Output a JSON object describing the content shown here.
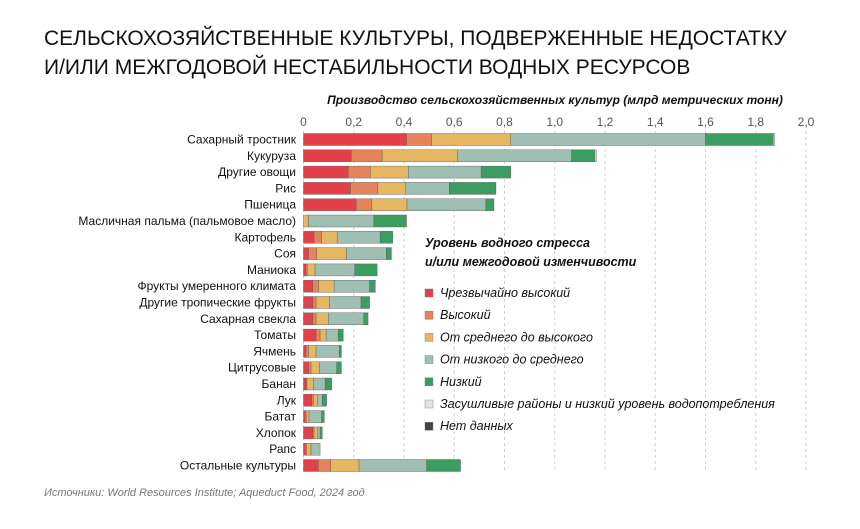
{
  "title_line1": "СЕЛЬСКОХОЗЯЙСТВЕННЫЕ КУЛЬТУРЫ, ПОДВЕРЖЕННЫЕ НЕДОСТАТКУ",
  "title_line2": "И/ИЛИ МЕЖГОДОВОЙ НЕСТАБИЛЬНОСТИ ВОДНЫХ РЕСУРСОВ",
  "source": "Источники: World Resources Institute; Aqueduct Food, 2024 год",
  "chart_data": {
    "type": "bar",
    "orientation": "horizontal",
    "stacked": true,
    "xlabel": "Производство сельскохозяйственных культур (млрд метрических тонн)",
    "xlim": [
      0,
      2.0
    ],
    "xticks": [
      "0",
      "0,2",
      "0,4",
      "0,6",
      "0,8",
      "1,0",
      "1,2",
      "1,4",
      "1,6",
      "1,8",
      "2,0"
    ],
    "grid": true,
    "legend_title": [
      "Уровень водного стресса",
      "и/или межгодовой изменчивости"
    ],
    "legend_position": "right",
    "categories": [
      "Сахарный тростник",
      "Кукуруза",
      "Другие овощи",
      "Рис",
      "Пшеница",
      "Масличная пальма (пальмовое масло)",
      "Картофель",
      "Соя",
      "Маниока",
      "Фрукты умеренного климата",
      "Другие тропические фрукты",
      "Сахарная свекла",
      "Томаты",
      "Ячмень",
      "Цитрусовые",
      "Банан",
      "Лук",
      "Батат",
      "Хлопок",
      "Рапс",
      "Остальные культуры"
    ],
    "series": [
      {
        "name": "Чрезвычайно высокий",
        "color": "#e4404a",
        "values": [
          0.41,
          0.19,
          0.178,
          0.187,
          0.21,
          0,
          0.042,
          0.02,
          0.01,
          0.037,
          0.037,
          0.037,
          0.05,
          0.01,
          0.02,
          0.01,
          0.033,
          0.007,
          0.037,
          0.007,
          0.059
        ]
      },
      {
        "name": "Высокий",
        "color": "#e5845a",
        "values": [
          0.1,
          0.123,
          0.088,
          0.109,
          0.062,
          0,
          0.03,
          0.033,
          0.005,
          0.023,
          0.013,
          0.013,
          0.016,
          0.01,
          0.01,
          0.004,
          0.007,
          0.004,
          0.005,
          0.006,
          0.049
        ]
      },
      {
        "name": "От среднего до высокого",
        "color": "#e6b763",
        "values": [
          0.315,
          0.3,
          0.151,
          0.111,
          0.14,
          0.02,
          0.062,
          0.118,
          0.031,
          0.062,
          0.053,
          0.049,
          0.024,
          0.03,
          0.033,
          0.026,
          0.015,
          0.011,
          0.015,
          0.017,
          0.113
        ]
      },
      {
        "name": "От низкого до среднего",
        "color": "#9fbfb2",
        "values": [
          0.775,
          0.454,
          0.29,
          0.173,
          0.314,
          0.26,
          0.171,
          0.159,
          0.158,
          0.141,
          0.126,
          0.141,
          0.048,
          0.092,
          0.069,
          0.046,
          0.02,
          0.05,
          0.009,
          0.036,
          0.269
        ]
      },
      {
        "name": "Низкий",
        "color": "#3b9d5f",
        "values": [
          0.27,
          0.093,
          0.118,
          0.186,
          0.032,
          0.13,
          0.05,
          0.02,
          0.089,
          0.02,
          0.034,
          0.017,
          0.02,
          0.009,
          0.019,
          0.026,
          0.017,
          0.011,
          0.009,
          0,
          0.135
        ]
      },
      {
        "name": "Засушливые районы и низкий уровень водопотребления",
        "color": "#e3e3e3",
        "values": [
          0.006,
          0.005,
          0,
          0,
          0,
          0,
          0,
          0,
          0,
          0.004,
          0,
          0,
          0,
          0,
          0,
          0,
          0,
          0,
          0,
          0,
          0
        ]
      },
      {
        "name": "Нет данных",
        "color": "#444444",
        "values": [
          0,
          0,
          0,
          0,
          0,
          0,
          0,
          0,
          0,
          0,
          0,
          0,
          0,
          0,
          0,
          0,
          0,
          0,
          0,
          0,
          0
        ]
      }
    ]
  }
}
